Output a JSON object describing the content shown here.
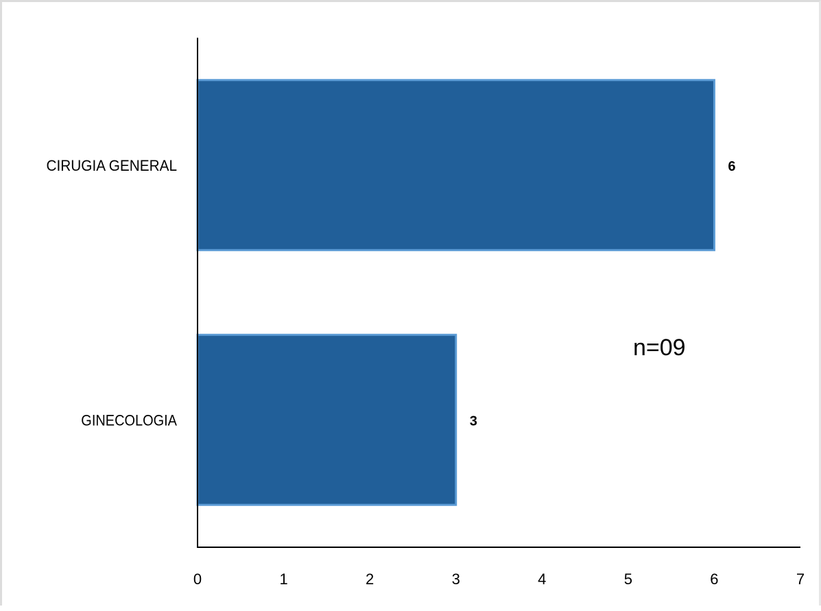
{
  "chart_data": {
    "type": "bar",
    "orientation": "horizontal",
    "categories": [
      "CIRUGIA GENERAL",
      "GINECOLOGIA"
    ],
    "values": [
      6,
      3
    ],
    "data_labels": [
      "6",
      "3"
    ],
    "xlim": [
      0,
      7
    ],
    "x_ticks": [
      "0",
      "1",
      "2",
      "3",
      "4",
      "5",
      "6",
      "7"
    ],
    "title": "",
    "xlabel": "",
    "ylabel": "",
    "grid": false,
    "legend": "none",
    "annotation": "n=09",
    "bar_color": "#215f99",
    "bar_edge_color": "#5b9bd5"
  }
}
